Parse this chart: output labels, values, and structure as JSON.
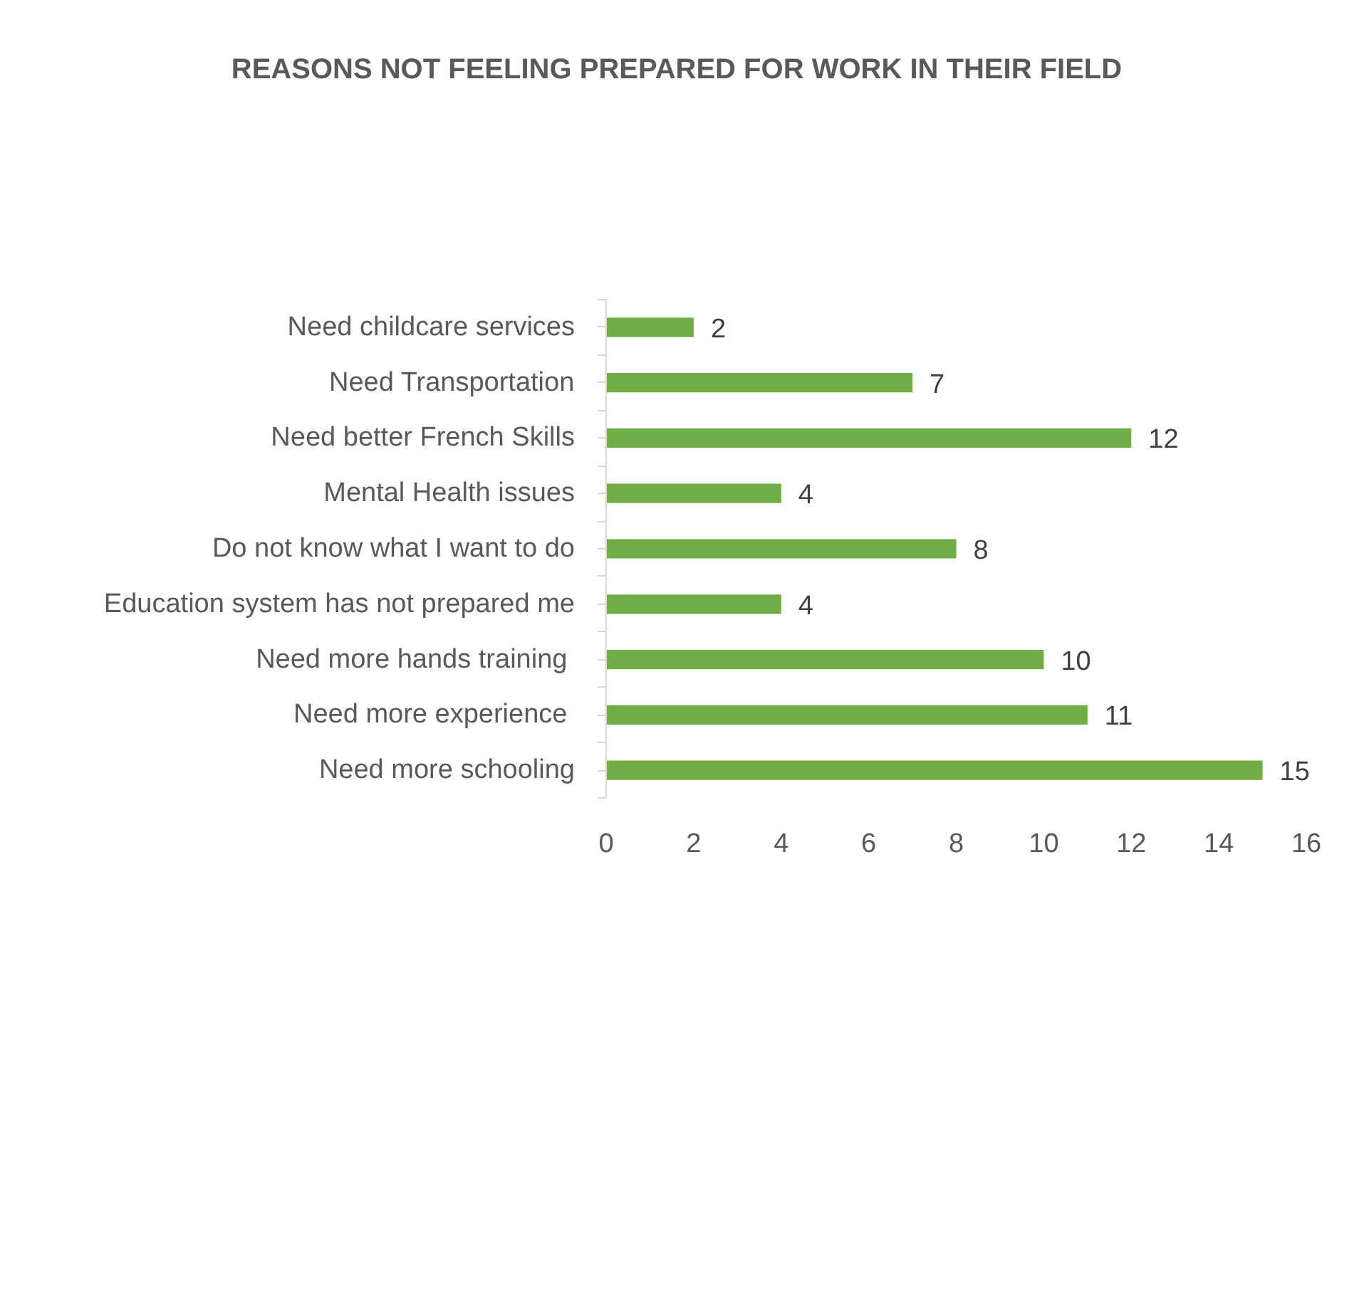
{
  "chart_data": {
    "type": "bar",
    "orientation": "horizontal",
    "title": "REASONS NOT FEELING PREPARED FOR WORK IN THEIR FIELD",
    "categories": [
      "Need childcare services",
      "Need Transportation",
      "Need better French Skills",
      "Mental Health issues",
      "Do not know what I want to do",
      "Education system has not prepared me",
      "Need more hands  training",
      "Need more  experience",
      "Need more schooling"
    ],
    "values": [
      2,
      7,
      12,
      4,
      8,
      4,
      10,
      11,
      15
    ],
    "color": "#70ad47",
    "xlim": [
      0,
      16
    ],
    "xticks": [
      0,
      2,
      4,
      6,
      8,
      10,
      12,
      14,
      16
    ],
    "grid": false,
    "data_labels": true
  }
}
